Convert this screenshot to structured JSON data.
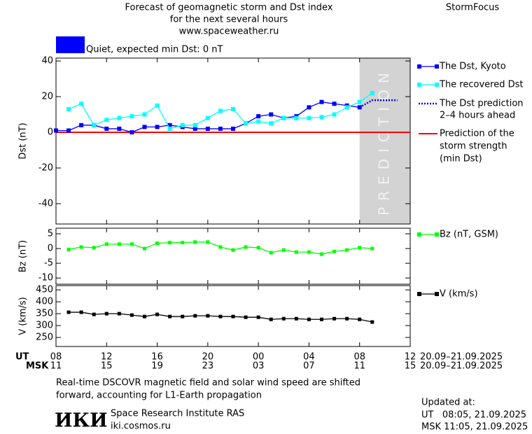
{
  "header": {
    "title_lines": [
      "Forecast of geomagnetic storm and Dst index",
      "for the next several hours",
      "www.spaceweather.ru"
    ],
    "brand": "StormFocus"
  },
  "status": {
    "color": "#0000ff",
    "text": "Quiet, expected min Dst: 0 nT"
  },
  "chart_data": [
    {
      "type": "line",
      "ylabel": "Dst (nT)",
      "xlim": [
        0,
        28
      ],
      "ylim": [
        -51.4,
        41.6
      ],
      "yticks": [
        -40,
        -20,
        0,
        20,
        40
      ],
      "prediction_zone": {
        "x": [
          24,
          28
        ],
        "label": "PREDICTION",
        "color": "#d3d3d3"
      },
      "series": [
        {
          "name": [
            "The Dst, Kyoto"
          ],
          "color": "#0000ff",
          "marker": "square",
          "line_style": "solid",
          "x": [
            0,
            1,
            2,
            3,
            4,
            5,
            6,
            7,
            8,
            9,
            10,
            11,
            12,
            13,
            14,
            15,
            16,
            17,
            18,
            19,
            20,
            21,
            22,
            23,
            24
          ],
          "values": [
            1,
            1,
            4,
            4,
            2,
            2,
            0,
            3,
            3,
            4,
            3,
            2,
            2,
            2,
            2,
            5,
            9,
            10,
            8,
            9,
            14,
            17,
            16,
            15,
            14
          ]
        },
        {
          "name": [
            "The recovered Dst"
          ],
          "color": "#00ffff",
          "marker": "square",
          "line_style": "solid",
          "x": [
            1,
            2,
            3,
            4,
            5,
            6,
            7,
            8,
            9,
            10,
            11,
            12,
            13,
            14,
            15,
            16,
            17,
            18,
            19,
            20,
            21,
            22,
            23,
            24,
            25
          ],
          "values": [
            13,
            16,
            4,
            7,
            8,
            9,
            10,
            15,
            2,
            4,
            4,
            8,
            12,
            13,
            5,
            6,
            5,
            8,
            8,
            8,
            8.5,
            10,
            14,
            17,
            22
          ]
        },
        {
          "name": [
            "The Dst prediction",
            "2–4 hours ahead"
          ],
          "color": "#0000ff",
          "marker": "none",
          "line_style": "dotted",
          "x": [
            24,
            25,
            27
          ],
          "values": [
            14,
            18,
            18
          ]
        }
      ],
      "hline": {
        "name": [
          "Prediction of the",
          "storm strength",
          "(min Dst)"
        ],
        "color": "#ff0000",
        "value": 0
      }
    },
    {
      "type": "line",
      "ylabel": "Bz (nT)",
      "xlim": [
        0,
        28
      ],
      "ylim": [
        -12.1,
        6.9
      ],
      "yticks": [
        -10,
        -5,
        0,
        5
      ],
      "series": [
        {
          "name": [
            "Bz (nT, GSM)"
          ],
          "color": "#00ff00",
          "marker": "square",
          "line_style": "solid",
          "x": [
            1,
            2,
            3,
            4,
            5,
            6,
            7,
            8,
            9,
            10,
            11,
            12,
            13,
            14,
            15,
            16,
            17,
            18,
            19,
            20,
            21,
            22,
            23,
            24,
            25
          ],
          "values": [
            -0.3,
            0.5,
            0.3,
            1.5,
            1.5,
            1.5,
            0,
            1.8,
            2,
            2,
            2.2,
            2.2,
            0.5,
            -0.5,
            0.5,
            0.3,
            -1.4,
            -0.5,
            -1.2,
            -1.2,
            -1.9,
            -1,
            -0.5,
            0.3,
            0
          ]
        }
      ]
    },
    {
      "type": "line",
      "ylabel": "V (km/s)",
      "xlim": [
        0,
        28
      ],
      "ylim": [
        212,
        468
      ],
      "yticks": [
        250,
        300,
        350,
        400,
        450
      ],
      "series": [
        {
          "name": [
            "V (km/s)"
          ],
          "color": "#000000",
          "marker": "square",
          "line_style": "solid",
          "x": [
            1,
            2,
            3,
            4,
            5,
            6,
            7,
            8,
            9,
            10,
            11,
            12,
            13,
            14,
            15,
            16,
            17,
            18,
            19,
            20,
            21,
            22,
            23,
            24,
            25
          ],
          "values": [
            356,
            356,
            347,
            350,
            350,
            344,
            338,
            347,
            338,
            338,
            341,
            341,
            338,
            338,
            335,
            335,
            326,
            329,
            329,
            326,
            326,
            329,
            329,
            326,
            315
          ]
        }
      ],
      "x_axis_rows": [
        "UT",
        "MSK"
      ],
      "xticks": [
        {
          "value": 0,
          "label": "08"
        },
        {
          "value": 4,
          "label": "12"
        },
        {
          "value": 8,
          "label": "16"
        },
        {
          "value": 12,
          "label": "20"
        },
        {
          "value": 16,
          "label": "00"
        },
        {
          "value": 20,
          "label": "04"
        },
        {
          "value": 24,
          "label": "08"
        },
        {
          "value": 28,
          "label": "12"
        }
      ],
      "xticks_msk": [
        {
          "value": 0,
          "label": "11"
        },
        {
          "value": 4,
          "label": "15"
        },
        {
          "value": 8,
          "label": "19"
        },
        {
          "value": 12,
          "label": "23"
        },
        {
          "value": 16,
          "label": "03"
        },
        {
          "value": 20,
          "label": "07"
        },
        {
          "value": 24,
          "label": "11"
        },
        {
          "value": 28,
          "label": "15"
        }
      ],
      "date_range": [
        "20.09–21.09.2025",
        "20.09–21.09.2025"
      ]
    }
  ],
  "footer": {
    "note_lines": [
      "Real-time DSCOVR magnetic field and solar wind speed are shifted",
      "forward, accounting for L1-Earth propagation"
    ],
    "logo": "ИКИ",
    "institute": "Space Research Institute RAS",
    "url": "iki.cosmos.ru",
    "updated_label": "Updated at:",
    "updated_lines": [
      "UT   08:05, 21.09.2025",
      "MSK 11:05, 21.09.2025"
    ]
  }
}
